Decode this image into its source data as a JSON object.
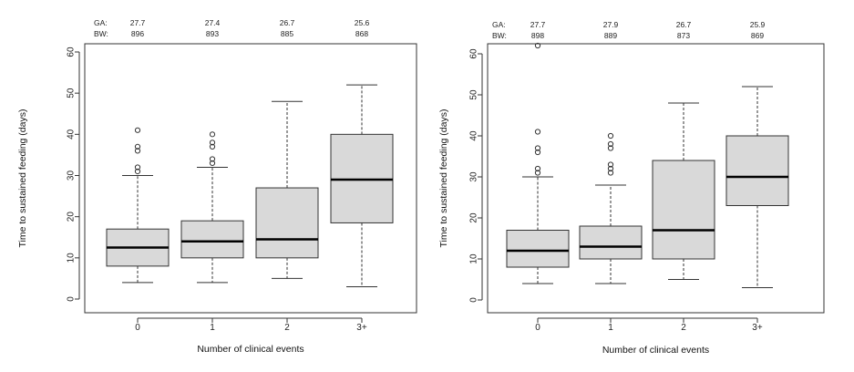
{
  "chart_data": [
    {
      "type": "boxplot",
      "xlabel": "Number of clinical events",
      "ylabel": "Time to sustained feeding (days)",
      "ylim": [
        0,
        60
      ],
      "yticks": [
        0,
        10,
        20,
        30,
        40,
        50,
        60
      ],
      "categories": [
        "0",
        "1",
        "2",
        "3+"
      ],
      "header_labels": {
        "ga": "GA:",
        "bw": "BW:"
      },
      "ga_values": [
        "27.7",
        "27.4",
        "26.7",
        "25.6"
      ],
      "bw_values": [
        "896",
        "893",
        "885",
        "868"
      ],
      "boxes": [
        {
          "whisker_low": 4,
          "q1": 8,
          "median": 12.5,
          "q3": 17,
          "whisker_high": 30,
          "outliers": [
            31,
            32,
            36,
            37,
            41
          ]
        },
        {
          "whisker_low": 4,
          "q1": 10,
          "median": 14,
          "q3": 19,
          "whisker_high": 32,
          "outliers": [
            33,
            34,
            37,
            38,
            40
          ]
        },
        {
          "whisker_low": 5,
          "q1": 10,
          "median": 14.5,
          "q3": 27,
          "whisker_high": 48,
          "outliers": []
        },
        {
          "whisker_low": 3,
          "q1": 18.5,
          "median": 29,
          "q3": 40,
          "whisker_high": 52,
          "outliers": []
        }
      ]
    },
    {
      "type": "boxplot",
      "xlabel": "Number of clinical events",
      "ylabel": "Time to sustained feeding (days)",
      "ylim": [
        0,
        60
      ],
      "yticks": [
        0,
        10,
        20,
        30,
        40,
        50,
        60
      ],
      "categories": [
        "0",
        "1",
        "2",
        "3+"
      ],
      "header_labels": {
        "ga": "GA:",
        "bw": "BW:"
      },
      "ga_values": [
        "27.7",
        "27.9",
        "26.7",
        "25.9"
      ],
      "bw_values": [
        "898",
        "889",
        "873",
        "869"
      ],
      "boxes": [
        {
          "whisker_low": 4,
          "q1": 8,
          "median": 12,
          "q3": 17,
          "whisker_high": 30,
          "outliers": [
            31,
            32,
            36,
            37,
            41,
            62
          ]
        },
        {
          "whisker_low": 4,
          "q1": 10,
          "median": 13,
          "q3": 18,
          "whisker_high": 28,
          "outliers": [
            31,
            32,
            33,
            37,
            38,
            40
          ]
        },
        {
          "whisker_low": 5,
          "q1": 10,
          "median": 17,
          "q3": 34,
          "whisker_high": 48,
          "outliers": []
        },
        {
          "whisker_low": 3,
          "q1": 23,
          "median": 30,
          "q3": 40,
          "whisker_high": 52,
          "outliers": []
        }
      ]
    }
  ],
  "colors": {
    "box_fill": "#d9d9d9",
    "stroke": "#333333",
    "median": "#000000"
  }
}
